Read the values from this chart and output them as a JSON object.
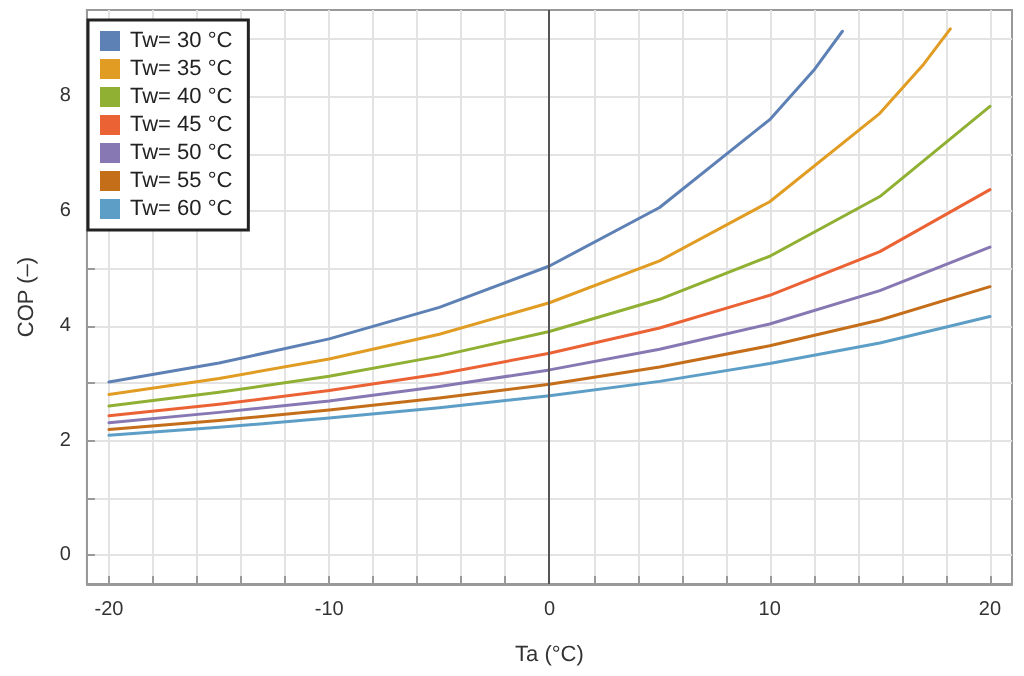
{
  "chart_data": {
    "type": "line",
    "xlabel": "Ta (°C)",
    "ylabel": "COP (–)",
    "xlim": [
      -21,
      21
    ],
    "ylim": [
      -0.5,
      9.5
    ],
    "xticks": [
      -20,
      {
        "value": -18,
        "label": null
      },
      {
        "value": -16,
        "label": null
      },
      {
        "value": -14,
        "label": null
      },
      {
        "value": -12,
        "label": null
      },
      -10,
      {
        "value": -8,
        "label": null
      },
      {
        "value": -6,
        "label": null
      },
      {
        "value": -4,
        "label": null
      },
      {
        "value": -2,
        "label": null
      },
      0,
      {
        "value": 2,
        "label": null
      },
      {
        "value": 4,
        "label": null
      },
      {
        "value": 6,
        "label": null
      },
      {
        "value": 8,
        "label": null
      },
      10,
      {
        "value": 12,
        "label": null
      },
      {
        "value": 14,
        "label": null
      },
      {
        "value": 16,
        "label": null
      },
      {
        "value": 18,
        "label": null
      },
      20
    ],
    "yticks": [
      0,
      {
        "value": 1,
        "label": null
      },
      2,
      {
        "value": 3,
        "label": null
      },
      4,
      {
        "value": 5,
        "label": null
      },
      6,
      {
        "value": 7,
        "label": null
      },
      8,
      {
        "value": 9,
        "label": null
      }
    ],
    "grid": true,
    "legend": "top left",
    "marker": "none",
    "line_style": "solid",
    "ref_lines": [
      {
        "axis": "x",
        "value": 0,
        "color": "#555555"
      }
    ],
    "series": [
      {
        "name": "Tw= 30 °C",
        "color": "#5e81b5",
        "x": [
          -20,
          -15,
          -10,
          -5,
          0,
          5,
          10,
          12,
          13.3
        ],
        "values": [
          3.02,
          3.35,
          3.77,
          4.32,
          5.04,
          6.06,
          7.59,
          8.45,
          9.13
        ]
      },
      {
        "name": "Tw= 35 °C",
        "color": "#e19c24",
        "x": [
          -20,
          -15,
          -10,
          -5,
          0,
          5,
          10,
          15,
          17,
          18.2
        ],
        "values": [
          2.8,
          3.08,
          3.42,
          3.85,
          4.4,
          5.13,
          6.16,
          7.7,
          8.56,
          9.17
        ]
      },
      {
        "name": "Tw= 40 °C",
        "color": "#8fb032",
        "x": [
          -20,
          -15,
          -10,
          -5,
          0,
          5,
          10,
          15,
          20
        ],
        "values": [
          2.6,
          2.84,
          3.12,
          3.47,
          3.9,
          4.46,
          5.21,
          6.25,
          7.82
        ]
      },
      {
        "name": "Tw= 45 °C",
        "color": "#eb6235",
        "x": [
          -20,
          -15,
          -10,
          -5,
          0,
          5,
          10,
          15,
          20
        ],
        "values": [
          2.43,
          2.63,
          2.87,
          3.16,
          3.52,
          3.96,
          4.53,
          5.29,
          6.37
        ]
      },
      {
        "name": "Tw= 50 °C",
        "color": "#8778b3",
        "x": [
          -20,
          -15,
          -10,
          -5,
          0,
          5,
          10,
          15,
          20
        ],
        "values": [
          2.31,
          2.49,
          2.69,
          2.94,
          3.23,
          3.59,
          4.03,
          4.61,
          5.37
        ]
      },
      {
        "name": "Tw= 55 °C",
        "color": "#c56e1a",
        "x": [
          -20,
          -15,
          -10,
          -5,
          0,
          5,
          10,
          15,
          20
        ],
        "values": [
          2.19,
          2.35,
          2.53,
          2.74,
          2.98,
          3.28,
          3.65,
          4.1,
          4.68
        ]
      },
      {
        "name": "Tw= 60 °C",
        "color": "#5d9ec7",
        "x": [
          -20,
          -15,
          -10,
          -5,
          0,
          5,
          10,
          15,
          20
        ],
        "values": [
          2.09,
          2.23,
          2.39,
          2.57,
          2.78,
          3.03,
          3.34,
          3.7,
          4.16
        ]
      }
    ]
  }
}
